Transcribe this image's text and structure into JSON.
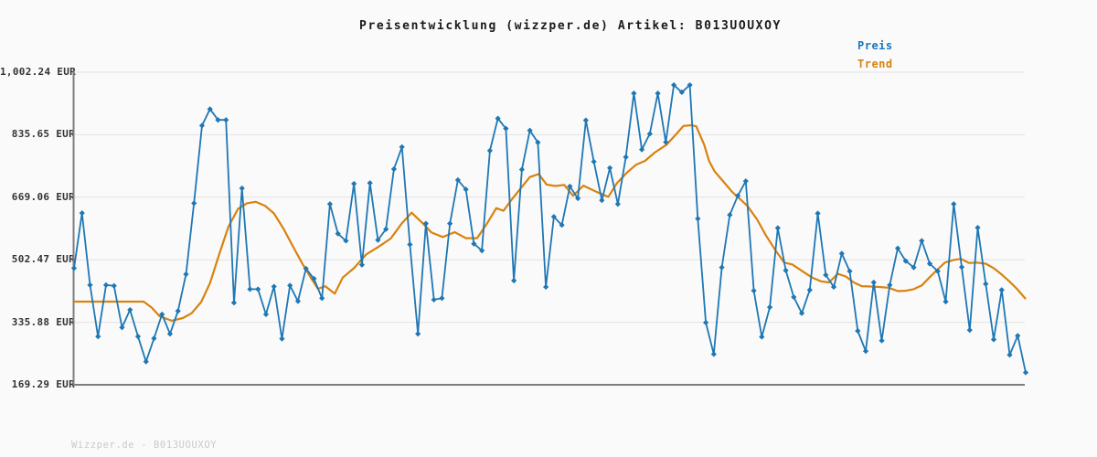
{
  "header": {
    "title": "Preisentwicklung (wizzper.de) Artikel: B013UOUXOY"
  },
  "footer": {
    "credit": "Wizzper.de - B013UOUXOY"
  },
  "legend": {
    "items": [
      {
        "label": "Preis",
        "color": "#1778bd"
      },
      {
        "label": "Trend",
        "color": "#d9820e"
      }
    ]
  },
  "chart_data": {
    "type": "line",
    "title": "Preisentwicklung (wizzper.de) Artikel: B013UOUXOY",
    "xlabel": "",
    "ylabel": "",
    "grid": true,
    "legend_position": "top-right",
    "currency": "EUR",
    "ylim": [
      169.29,
      1002.24
    ],
    "y_ticks": [
      "1,002.24 EUR",
      "835.65 EUR",
      "669.06 EUR",
      "502.47 EUR",
      "335.88 EUR",
      "169.29 EUR"
    ],
    "y_tick_values": [
      1002.24,
      835.65,
      669.06,
      502.47,
      335.88,
      169.29
    ],
    "series": [
      {
        "name": "Preis",
        "style": "line-with-diamond-markers",
        "color": "#1f77b4",
        "values": [
          480,
          627,
          435,
          298,
          435,
          433,
          322,
          369,
          298,
          231,
          293,
          357,
          305,
          366,
          464,
          653,
          860,
          904,
          875,
          875,
          388,
          693,
          424,
          424,
          357,
          431,
          292,
          434,
          392,
          479,
          452,
          400,
          651,
          572,
          553,
          705,
          489,
          707,
          555,
          584,
          744,
          803,
          543,
          305,
          599,
          396,
          400,
          599,
          715,
          690,
          545,
          527,
          793,
          879,
          852,
          447,
          743,
          847,
          815,
          430,
          617,
          595,
          698,
          666,
          874,
          764,
          661,
          747,
          651,
          776,
          946,
          796,
          838,
          946,
          816,
          968,
          949,
          968,
          612,
          335,
          251,
          482,
          622,
          673,
          712,
          420,
          297,
          376,
          587,
          474,
          403,
          360,
          422,
          626,
          462,
          430,
          519,
          472,
          313,
          259,
          442,
          287,
          435,
          533,
          499,
          482,
          553,
          492,
          472,
          391,
          651,
          483,
          315,
          588,
          438,
          290,
          422,
          249,
          300,
          202
        ]
      },
      {
        "name": "Trend",
        "style": "smooth-line",
        "color": "#d9820e",
        "x": [
          0,
          8.7,
          9.7,
          10.7,
          12.2,
          13.6,
          14.7,
          15.9,
          17.0,
          18.2,
          19.3,
          20.5,
          21.6,
          22.7,
          23.9,
          25.0,
          26.2,
          27.3,
          28.5,
          29.6,
          30.5,
          31.4,
          32.6,
          33.6,
          35.0,
          36.5,
          38.0,
          39.6,
          41.0,
          42.2,
          43.6,
          44.7,
          46.1,
          47.6,
          49.0,
          50.4,
          51.7,
          52.8,
          53.7,
          54.8,
          55.9,
          57.0,
          58.1,
          59.1,
          60.2,
          61.3,
          62.4,
          63.7,
          65.3,
          66.8,
          67.9,
          69.2,
          70.3,
          71.4,
          72.6,
          74.1,
          75.3,
          76.2,
          77.2,
          77.8,
          78.8,
          79.4,
          80.1,
          81.2,
          82.3,
          83.3,
          84.2,
          85.4,
          86.5,
          87.7,
          88.8,
          89.8,
          91.0,
          92.3,
          93.4,
          94.4,
          95.5,
          96.5,
          97.5,
          98.5,
          99.7,
          100.7,
          101.9,
          103.0,
          104.0,
          105.0,
          106.0,
          107.0,
          107.9,
          108.9,
          110.0,
          110.9,
          111.9,
          112.9,
          114.0,
          115.0,
          116.0,
          117.0,
          117.9,
          119.0
        ],
        "values": [
          391,
          391,
          375,
          352,
          340,
          347,
          360,
          390,
          440,
          520,
          590,
          638,
          653,
          657,
          646,
          626,
          585,
          541,
          494,
          455,
          425,
          432,
          412,
          455,
          480,
          516,
          536,
          559,
          600,
          628,
          600,
          575,
          563,
          576,
          560,
          560,
          601,
          640,
          633,
          665,
          694,
          723,
          731,
          703,
          699,
          702,
          673,
          700,
          684,
          670,
          707,
          736,
          756,
          766,
          788,
          809,
          837,
          859,
          861,
          858,
          809,
          766,
          738,
          711,
          683,
          664,
          646,
          610,
          568,
          528,
          495,
          490,
          473,
          455,
          445,
          442,
          465,
          458,
          442,
          432,
          431,
          430,
          428,
          419,
          420,
          424,
          434,
          456,
          475,
          495,
          502,
          505,
          494,
          495,
          492,
          480,
          463,
          444,
          425,
          398
        ]
      }
    ]
  },
  "colors": {
    "background": "#fafafa",
    "gridline": "#e2e2e2",
    "axis": "#7d7d7d",
    "tick_text": "#333333",
    "title_text": "#1a1a1a",
    "footer_text": "#c9c9c9"
  }
}
